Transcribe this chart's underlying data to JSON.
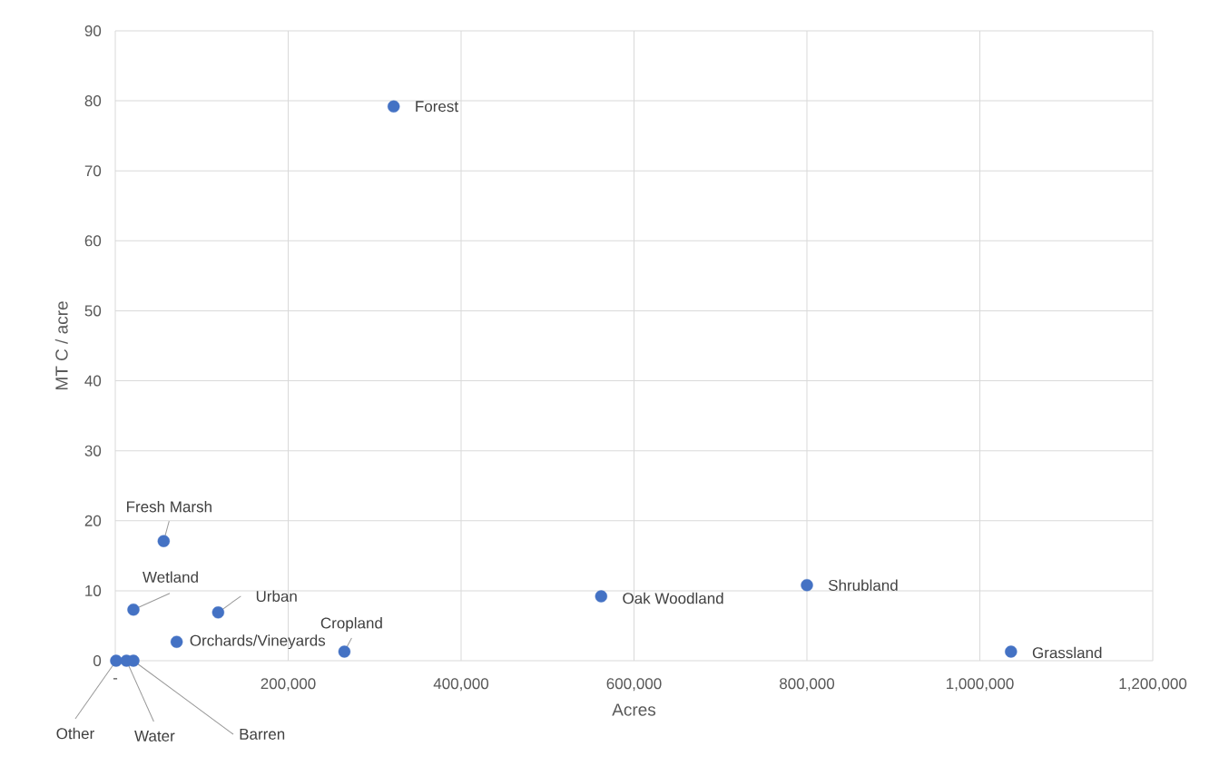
{
  "chart_data": {
    "type": "scatter",
    "xlabel": "Acres",
    "ylabel": "MT C / acre",
    "x": [
      322000,
      56000,
      21000,
      119000,
      71000,
      265000,
      562000,
      800000,
      1036000,
      1000,
      13000,
      21000
    ],
    "values": [
      79.2,
      17.1,
      7.3,
      6.9,
      2.7,
      1.3,
      9.2,
      10.8,
      1.3,
      0,
      0,
      0
    ],
    "color": "#4472c4",
    "marker": "circle",
    "grid": true,
    "xlim": [
      0,
      1200000
    ],
    "xticks": [
      {
        "value": 0,
        "label": "-"
      },
      {
        "value": 200000,
        "label": "200,000"
      },
      {
        "value": 400000,
        "label": "400,000"
      },
      {
        "value": 600000,
        "label": "600,000"
      },
      {
        "value": 800000,
        "label": "800,000"
      },
      {
        "value": 1000000,
        "label": "1,000,000"
      },
      {
        "value": 1200000,
        "label": "1,200,000"
      }
    ],
    "ylim": [
      0,
      90
    ],
    "yticks": [
      0,
      10,
      20,
      30,
      40,
      50,
      60,
      70,
      80,
      90
    ],
    "annotations": [
      {
        "text": "Forest",
        "x": 322000,
        "y": 79.2
      },
      {
        "text": "Fresh Marsh",
        "x": 56000,
        "y": 17.1
      },
      {
        "text": "Wetland",
        "x": 21000,
        "y": 7.3
      },
      {
        "text": "Urban",
        "x": 119000,
        "y": 6.9
      },
      {
        "text": "Orchards/Vineyards",
        "x": 71000,
        "y": 2.7
      },
      {
        "text": "Cropland",
        "x": 265000,
        "y": 1.3
      },
      {
        "text": "Oak Woodland",
        "x": 562000,
        "y": 9.2
      },
      {
        "text": "Shrubland",
        "x": 800000,
        "y": 10.8
      },
      {
        "text": "Grassland",
        "x": 1036000,
        "y": 1.3
      },
      {
        "text": "Other",
        "x": 1000,
        "y": 0
      },
      {
        "text": "Water",
        "x": 13000,
        "y": 0
      },
      {
        "text": "Barren",
        "x": 21000,
        "y": 0
      }
    ]
  }
}
